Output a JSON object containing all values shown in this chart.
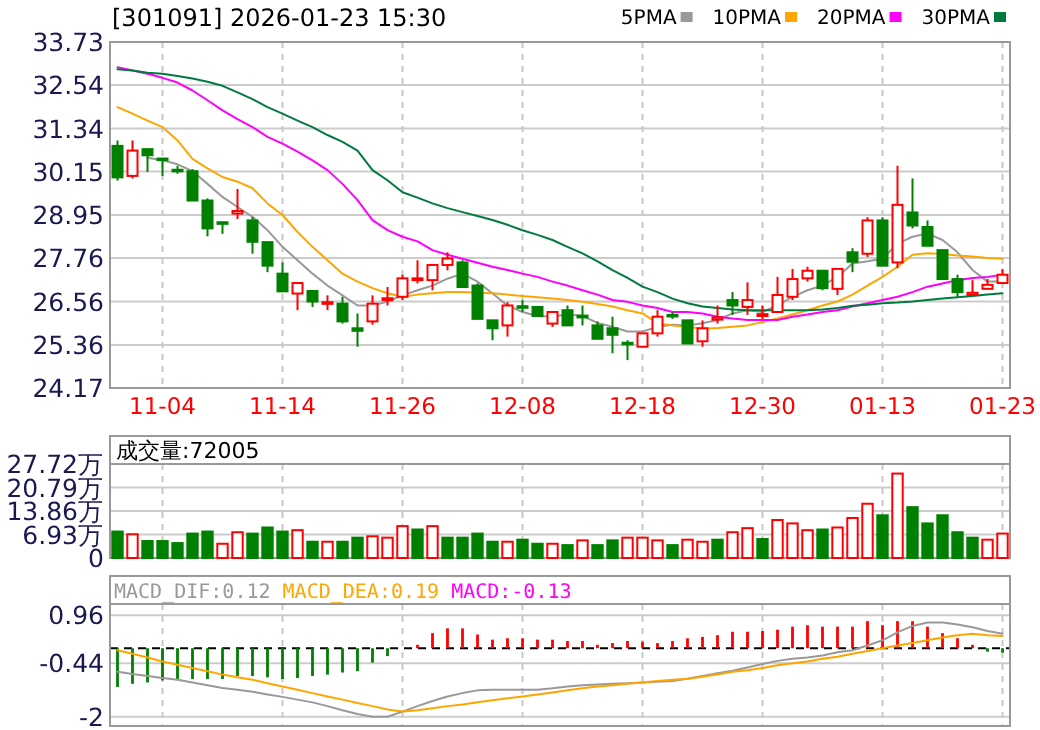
{
  "chart_data": [
    {
      "type": "candlestick",
      "title": "[301091] 2026-01-23 15:30",
      "legend": "top right",
      "grid": true,
      "categories": [
        null,
        null,
        null,
        "11-04",
        null,
        null,
        null,
        null,
        null,
        null,
        null,
        "11-14",
        null,
        null,
        null,
        null,
        null,
        null,
        null,
        "11-26",
        null,
        null,
        null,
        null,
        null,
        null,
        null,
        "12-08",
        null,
        null,
        null,
        null,
        null,
        null,
        null,
        "12-18",
        null,
        null,
        null,
        null,
        null,
        null,
        null,
        "12-30",
        null,
        null,
        null,
        null,
        null,
        null,
        null,
        "01-13",
        null,
        null,
        null,
        null,
        null,
        null,
        null,
        "01-23"
      ],
      "ohlc": [
        [
          30.86,
          31.01,
          29.9,
          29.99
        ],
        [
          30.03,
          31.01,
          29.96,
          30.73
        ],
        [
          30.77,
          30.82,
          30.14,
          30.6
        ],
        [
          30.51,
          30.55,
          30.03,
          30.47
        ],
        [
          30.2,
          30.31,
          30.09,
          30.16
        ],
        [
          30.16,
          30.22,
          29.35,
          29.35
        ],
        [
          29.35,
          29.41,
          28.36,
          28.58
        ],
        [
          28.75,
          28.77,
          28.43,
          28.71
        ],
        [
          28.99,
          29.67,
          28.84,
          29.06
        ],
        [
          28.8,
          28.89,
          27.88,
          28.21
        ],
        [
          28.2,
          28.25,
          27.37,
          27.55
        ],
        [
          27.33,
          27.64,
          26.84,
          26.84
        ],
        [
          26.78,
          27.07,
          26.32,
          27.07
        ],
        [
          26.85,
          26.85,
          26.41,
          26.56
        ],
        [
          26.5,
          26.73,
          26.32,
          26.54
        ],
        [
          26.5,
          26.69,
          25.95,
          26.01
        ],
        [
          25.82,
          26.23,
          25.31,
          25.75
        ],
        [
          26.01,
          26.73,
          25.92,
          26.5
        ],
        [
          26.6,
          26.96,
          26.45,
          26.65
        ],
        [
          26.69,
          27.3,
          26.6,
          27.2
        ],
        [
          27.15,
          27.7,
          27.06,
          27.2
        ],
        [
          27.15,
          27.61,
          26.87,
          27.57
        ],
        [
          27.57,
          27.92,
          27.42,
          27.75
        ],
        [
          27.64,
          27.7,
          26.93,
          26.96
        ],
        [
          27.0,
          27.06,
          26.04,
          26.08
        ],
        [
          26.04,
          26.04,
          25.49,
          25.82
        ],
        [
          25.9,
          26.54,
          25.59,
          26.45
        ],
        [
          26.43,
          26.6,
          26.27,
          26.39
        ],
        [
          26.41,
          26.43,
          26.14,
          26.16
        ],
        [
          25.95,
          26.32,
          25.86,
          26.27
        ],
        [
          26.32,
          26.45,
          25.9,
          25.9
        ],
        [
          26.17,
          26.45,
          25.9,
          26.12
        ],
        [
          25.9,
          26.01,
          25.53,
          25.53
        ],
        [
          25.82,
          26.14,
          25.13,
          25.64
        ],
        [
          25.42,
          25.49,
          24.94,
          25.38
        ],
        [
          25.31,
          25.68,
          25.31,
          25.68
        ],
        [
          25.68,
          26.32,
          25.59,
          26.14
        ],
        [
          26.19,
          26.27,
          26.08,
          26.16
        ],
        [
          26.04,
          26.08,
          25.4,
          25.4
        ],
        [
          25.46,
          26.04,
          25.31,
          25.82
        ],
        [
          26.06,
          26.45,
          25.95,
          26.12
        ],
        [
          26.6,
          26.82,
          26.19,
          26.45
        ],
        [
          26.41,
          27.09,
          26.19,
          26.6
        ],
        [
          26.16,
          26.45,
          26.08,
          26.21
        ],
        [
          26.27,
          27.24,
          26.23,
          26.74
        ],
        [
          26.69,
          27.46,
          26.6,
          27.18
        ],
        [
          27.2,
          27.52,
          27.11,
          27.41
        ],
        [
          27.41,
          27.41,
          26.87,
          26.93
        ],
        [
          26.91,
          27.46,
          26.74,
          27.46
        ],
        [
          27.92,
          28.03,
          27.37,
          27.66
        ],
        [
          27.88,
          28.89,
          27.79,
          28.8
        ],
        [
          28.8,
          28.89,
          27.52,
          27.55
        ],
        [
          27.64,
          30.31,
          27.48,
          29.23
        ],
        [
          29.02,
          29.96,
          28.58,
          28.66
        ],
        [
          28.62,
          28.8,
          28.1,
          28.1
        ],
        [
          27.98,
          28.03,
          27.15,
          27.18
        ],
        [
          27.18,
          27.3,
          26.69,
          26.82
        ],
        [
          26.74,
          27.15,
          26.74,
          26.8
        ],
        [
          26.91,
          27.18,
          26.91,
          27.02
        ],
        [
          27.07,
          27.46,
          27.04,
          27.3
        ]
      ],
      "series": [
        {
          "name": "5PMA",
          "type": "line",
          "color": "#999999",
          "values": [
            null,
            null,
            30.53,
            30.46,
            30.35,
            30.16,
            29.81,
            29.45,
            29.17,
            28.9,
            28.53,
            28.07,
            27.7,
            27.33,
            27.0,
            26.73,
            26.45,
            26.45,
            26.56,
            26.73,
            26.87,
            27.0,
            27.19,
            27.33,
            27.11,
            26.78,
            26.45,
            26.27,
            26.16,
            26.14,
            26.21,
            26.16,
            25.97,
            25.86,
            25.73,
            25.73,
            25.86,
            25.92,
            25.9,
            25.96,
            26.05,
            26.23,
            26.32,
            26.27,
            26.45,
            26.69,
            26.87,
            27.0,
            27.24,
            27.61,
            27.67,
            27.74,
            28.16,
            28.35,
            28.44,
            28.26,
            27.92,
            27.43,
            27.11,
            27.11
          ]
        },
        {
          "name": "10PMA",
          "type": "line",
          "color": "#ffa500",
          "values": [
            31.93,
            31.75,
            31.56,
            31.38,
            31.01,
            30.5,
            30.24,
            30.0,
            29.87,
            29.69,
            29.27,
            28.95,
            28.48,
            28.07,
            27.7,
            27.33,
            27.11,
            26.93,
            26.79,
            26.69,
            26.75,
            26.79,
            26.82,
            26.82,
            26.8,
            26.79,
            26.75,
            26.71,
            26.68,
            26.64,
            26.6,
            26.55,
            26.49,
            26.42,
            26.32,
            26.23,
            25.96,
            25.9,
            25.86,
            25.81,
            25.83,
            25.86,
            25.9,
            25.99,
            26.09,
            26.2,
            26.32,
            26.45,
            26.56,
            26.75,
            27.0,
            27.24,
            27.52,
            27.85,
            27.89,
            27.87,
            27.83,
            27.8,
            27.76,
            27.74
          ]
        },
        {
          "name": "20PMA",
          "type": "line",
          "color": "#ff00ff",
          "values": [
            33.03,
            32.94,
            32.85,
            32.74,
            32.61,
            32.39,
            32.12,
            31.84,
            31.6,
            31.38,
            31.11,
            30.92,
            30.7,
            30.46,
            30.19,
            29.81,
            29.36,
            28.81,
            28.53,
            28.35,
            28.22,
            27.98,
            27.85,
            27.74,
            27.63,
            27.52,
            27.43,
            27.33,
            27.24,
            27.11,
            27.0,
            26.87,
            26.75,
            26.6,
            26.55,
            26.45,
            26.38,
            26.27,
            26.27,
            26.23,
            26.14,
            26.09,
            26.05,
            26.05,
            26.05,
            26.14,
            26.2,
            26.27,
            26.32,
            26.42,
            26.51,
            26.6,
            26.69,
            26.82,
            26.97,
            27.06,
            27.15,
            27.21,
            27.24,
            27.3
          ]
        },
        {
          "name": "30PMA",
          "type": "line",
          "color": "#007a3d",
          "values": [
            32.98,
            32.94,
            32.88,
            32.85,
            32.79,
            32.72,
            32.63,
            32.52,
            32.34,
            32.15,
            31.93,
            31.75,
            31.56,
            31.38,
            31.16,
            30.97,
            30.73,
            30.19,
            29.91,
            29.58,
            29.43,
            29.27,
            29.14,
            29.03,
            28.92,
            28.81,
            28.68,
            28.53,
            28.4,
            28.26,
            28.07,
            27.89,
            27.67,
            27.43,
            27.21,
            26.97,
            26.82,
            26.64,
            26.51,
            26.42,
            26.38,
            26.34,
            26.32,
            26.32,
            26.32,
            26.32,
            26.32,
            26.34,
            26.38,
            26.44,
            26.47,
            26.51,
            26.53,
            26.56,
            26.6,
            26.64,
            26.68,
            26.71,
            26.75,
            26.79
          ]
        }
      ],
      "ylim": [
        24.17,
        33.73
      ],
      "yticks": [
        24.17,
        25.36,
        26.56,
        27.76,
        28.95,
        30.15,
        31.34,
        32.54,
        33.73
      ]
    },
    {
      "type": "bar",
      "title": "成交量:72005",
      "grid": true,
      "tick_labels": "y",
      "categories": [
        null,
        null,
        null,
        null,
        null,
        null,
        null,
        null,
        null,
        null,
        null,
        null,
        null,
        null,
        null,
        null,
        null,
        null,
        null,
        null,
        null,
        null,
        null,
        null,
        null,
        null,
        null,
        null,
        null,
        null,
        null,
        null,
        null,
        null,
        null,
        null,
        null,
        null,
        null,
        null,
        null,
        null,
        null,
        null,
        null,
        null,
        null,
        null,
        null,
        null,
        null,
        null,
        null,
        null,
        null,
        null,
        null,
        null,
        null,
        null
      ],
      "values": [
        7.8,
        7.0,
        5.0,
        5.0,
        4.4,
        7.2,
        7.8,
        4.2,
        7.6,
        7.2,
        9.0,
        7.8,
        8.2,
        4.8,
        4.8,
        4.8,
        6.0,
        6.4,
        6.0,
        9.4,
        8.4,
        9.4,
        6.0,
        6.0,
        7.2,
        4.8,
        4.8,
        5.4,
        4.2,
        4.2,
        3.8,
        5.2,
        3.8,
        5.2,
        6.0,
        6.0,
        5.2,
        3.8,
        5.4,
        4.8,
        5.4,
        7.6,
        8.8,
        5.6,
        11.2,
        10.2,
        8.2,
        8.4,
        9.0,
        11.8,
        16.0,
        12.6,
        24.9,
        15.0,
        10.2,
        12.6,
        7.6,
        6.0,
        5.4,
        7.2
      ],
      "colors": [
        "#008000",
        "#ff0000",
        "#008000",
        "#008000",
        "#008000",
        "#008000",
        "#008000",
        "#ff0000",
        "#ff0000",
        "#008000",
        "#008000",
        "#008000",
        "#ff0000",
        "#008000",
        "#ff0000",
        "#008000",
        "#008000",
        "#ff0000",
        "#ff0000",
        "#ff0000",
        "#008000",
        "#ff0000",
        "#008000",
        "#008000",
        "#008000",
        "#008000",
        "#ff0000",
        "#008000",
        "#008000",
        "#ff0000",
        "#008000",
        "#ff0000",
        "#008000",
        "#008000",
        "#ff0000",
        "#ff0000",
        "#ff0000",
        "#008000",
        "#ff0000",
        "#ff0000",
        "#008000",
        "#ff0000",
        "#ff0000",
        "#008000",
        "#ff0000",
        "#ff0000",
        "#ff0000",
        "#008000",
        "#ff0000",
        "#ff0000",
        "#ff0000",
        "#008000",
        "#ff0000",
        "#008000",
        "#008000",
        "#008000",
        "#008000",
        "#008000",
        "#ff0000",
        "#ff0000"
      ],
      "ylim": [
        0,
        27.72
      ],
      "yticks": [
        0,
        {
          "value": 6.93,
          "label": "6.93万"
        },
        {
          "value": 13.86,
          "label": "13.86万"
        },
        {
          "value": 20.79,
          "label": "20.79万"
        },
        {
          "value": 27.72,
          "label": "27.72万"
        }
      ]
    },
    {
      "type": "bar",
      "grid": true,
      "tick_labels": "y",
      "legend": "top left",
      "categories": [
        null,
        null,
        null,
        null,
        null,
        null,
        null,
        null,
        null,
        null,
        null,
        null,
        null,
        null,
        null,
        null,
        null,
        null,
        null,
        null,
        null,
        null,
        null,
        null,
        null,
        null,
        null,
        null,
        null,
        null,
        null,
        null,
        null,
        null,
        null,
        null,
        null,
        null,
        null,
        null,
        null,
        null,
        null,
        null,
        null,
        null,
        null,
        null,
        null,
        null,
        null,
        null,
        null,
        null,
        null,
        null,
        null,
        null,
        null,
        null
      ],
      "series": [
        {
          "name": "MACD_DIF:0.12",
          "type": "line",
          "color": "#999999",
          "values": [
            -0.69,
            -0.75,
            -0.81,
            -0.87,
            -0.92,
            -1.0,
            -1.08,
            -1.16,
            -1.21,
            -1.27,
            -1.35,
            -1.42,
            -1.5,
            -1.58,
            -1.69,
            -1.81,
            -1.92,
            -2.0,
            -2.0,
            -1.85,
            -1.69,
            -1.54,
            -1.41,
            -1.31,
            -1.23,
            -1.21,
            -1.21,
            -1.21,
            -1.21,
            -1.17,
            -1.12,
            -1.08,
            -1.06,
            -1.04,
            -1.02,
            -1.0,
            -0.98,
            -0.96,
            -0.89,
            -0.81,
            -0.73,
            -0.66,
            -0.56,
            -0.46,
            -0.37,
            -0.31,
            -0.27,
            -0.21,
            -0.12,
            -0.06,
            0.08,
            0.23,
            0.46,
            0.65,
            0.75,
            0.75,
            0.69,
            0.61,
            0.5,
            0.42
          ]
        },
        {
          "name": "MACD_DEA:0.19",
          "type": "line",
          "color": "#ffa500",
          "values": [
            -0.06,
            -0.16,
            -0.27,
            -0.39,
            -0.48,
            -0.58,
            -0.67,
            -0.77,
            -0.85,
            -0.92,
            -1.02,
            -1.12,
            -1.21,
            -1.31,
            -1.41,
            -1.5,
            -1.6,
            -1.69,
            -1.79,
            -1.85,
            -1.81,
            -1.75,
            -1.69,
            -1.64,
            -1.58,
            -1.52,
            -1.46,
            -1.41,
            -1.35,
            -1.29,
            -1.23,
            -1.17,
            -1.12,
            -1.08,
            -1.04,
            -1.0,
            -0.96,
            -0.92,
            -0.89,
            -0.83,
            -0.77,
            -0.69,
            -0.64,
            -0.58,
            -0.5,
            -0.44,
            -0.39,
            -0.31,
            -0.25,
            -0.16,
            -0.08,
            0.0,
            0.08,
            0.15,
            0.23,
            0.31,
            0.38,
            0.42,
            0.38,
            0.36
          ]
        },
        {
          "name": "MACD:-0.13",
          "type": "bar",
          "values": [
            -1.13,
            -1.04,
            -1.0,
            -0.94,
            -0.9,
            -0.9,
            -0.9,
            -0.9,
            -0.81,
            -0.81,
            -0.85,
            -0.9,
            -0.87,
            -0.81,
            -0.77,
            -0.71,
            -0.67,
            -0.42,
            -0.23,
            null,
            0.1,
            0.44,
            0.58,
            0.58,
            0.4,
            0.25,
            0.29,
            0.29,
            0.25,
            0.25,
            0.21,
            0.21,
            0.1,
            0.15,
            0.21,
            0.19,
            0.15,
            0.21,
            0.29,
            0.33,
            0.38,
            0.48,
            0.48,
            0.5,
            0.54,
            0.63,
            0.67,
            0.63,
            0.63,
            0.63,
            0.79,
            0.67,
            0.79,
            0.79,
            0.63,
            0.44,
            0.29,
            0.1,
            -0.1,
            -0.13
          ],
          "colors": [
            "#008000",
            "#008000",
            "#008000",
            "#008000",
            "#008000",
            "#008000",
            "#008000",
            "#008000",
            "#008000",
            "#008000",
            "#008000",
            "#008000",
            "#008000",
            "#008000",
            "#008000",
            "#008000",
            "#008000",
            "#008000",
            "#008000",
            null,
            "#ff0000",
            "#ff0000",
            "#ff0000",
            "#ff0000",
            "#ff0000",
            "#ff0000",
            "#ff0000",
            "#ff0000",
            "#ff0000",
            "#ff0000",
            "#ff0000",
            "#ff0000",
            "#ff0000",
            "#ff0000",
            "#ff0000",
            "#ff0000",
            "#ff0000",
            "#ff0000",
            "#ff0000",
            "#ff0000",
            "#ff0000",
            "#ff0000",
            "#ff0000",
            "#ff0000",
            "#ff0000",
            "#ff0000",
            "#ff0000",
            "#ff0000",
            "#ff0000",
            "#ff0000",
            "#ff0000",
            "#ff0000",
            "#ff0000",
            "#ff0000",
            "#ff0000",
            "#ff0000",
            "#ff0000",
            "#ff0000",
            "#008000",
            "#008000"
          ]
        }
      ],
      "ref_lines": [
        {
          "axis": "y",
          "value": 0,
          "color": "#000000",
          "line_style": "dashed"
        }
      ],
      "ylim": [
        -2.27,
        1.29
      ],
      "yticks": [
        0.96,
        -0.44,
        -2
      ]
    }
  ]
}
